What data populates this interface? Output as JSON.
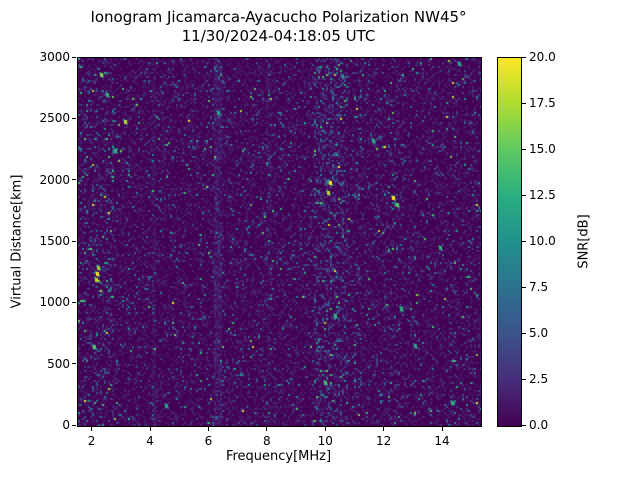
{
  "chart_data": {
    "type": "heatmap",
    "title": "Ionogram Jicamarca-Ayacucho Polarization NW45°",
    "subtitle": "11/30/2024-04:18:05 UTC",
    "xlabel": "Frequency[MHz]",
    "ylabel": "Virtual Distance[km]",
    "xlim": [
      1.5,
      15.3
    ],
    "ylim": [
      0,
      3000
    ],
    "xticks": [
      2,
      4,
      6,
      8,
      10,
      12,
      14
    ],
    "yticks": [
      0,
      500,
      1000,
      1500,
      2000,
      2500,
      3000
    ],
    "grid": false,
    "colorbar": {
      "label": "SNR[dB]",
      "min": 0,
      "max": 20,
      "ticks": [
        "0.0",
        "2.5",
        "5.0",
        "7.5",
        "10.0",
        "12.5",
        "15.0",
        "17.5",
        "20.0"
      ],
      "position": "right"
    },
    "colormap": "viridis",
    "colormap_stops": [
      "#440154",
      "#472d7b",
      "#3b528b",
      "#2c728e",
      "#21918c",
      "#28ae80",
      "#5ec962",
      "#addc30",
      "#fde725"
    ],
    "noise": {
      "description": "Dark viridis background (~0 dB SNR) with sparse speckle noise; denser speckle columns near 9.6-10.7 MHz, faint vertical interference lines near 4.1, 6.3, 8.0 and 11.1 MHz, brighter scattered echoes near 2-2.7 MHz and isolated strong echoes up to 20 dB",
      "seed": 20241130,
      "background_db": 0,
      "base_speckle_density": 0.1,
      "bands": [
        {
          "x0": 1.5,
          "x1": 2.75,
          "density_mult": 2.0,
          "bright_boost": 2.2
        },
        {
          "x0": 4.0,
          "x1": 4.18,
          "base_add": 0.9
        },
        {
          "x0": 6.18,
          "x1": 6.42,
          "base_add": 1.6,
          "density_mult": 1.3
        },
        {
          "x0": 7.95,
          "x1": 8.12,
          "base_add": 0.7
        },
        {
          "x0": 9.6,
          "x1": 10.75,
          "density_mult": 3.0,
          "bright_boost": 1.3
        },
        {
          "x0": 10.95,
          "x1": 11.2,
          "density_mult": 1.7
        },
        {
          "x0": 12.1,
          "x1": 12.55,
          "density_mult": 1.5
        },
        {
          "x0": 14.9,
          "x1": 15.3,
          "density_mult": 1.4
        }
      ],
      "bright_spots": [
        {
          "x": 2.05,
          "y": 640,
          "snr": 15
        },
        {
          "x": 2.1,
          "y": 1190,
          "snr": 18
        },
        {
          "x": 2.14,
          "y": 1240,
          "snr": 20
        },
        {
          "x": 2.18,
          "y": 1290,
          "snr": 17
        },
        {
          "x": 2.3,
          "y": 2860,
          "snr": 16
        },
        {
          "x": 2.5,
          "y": 2700,
          "snr": 13
        },
        {
          "x": 2.75,
          "y": 2240,
          "snr": 13
        },
        {
          "x": 3.1,
          "y": 2480,
          "snr": 18
        },
        {
          "x": 4.5,
          "y": 160,
          "snr": 12
        },
        {
          "x": 6.3,
          "y": 2550,
          "snr": 12
        },
        {
          "x": 9.95,
          "y": 350,
          "snr": 14
        },
        {
          "x": 10.05,
          "y": 1900,
          "snr": 18
        },
        {
          "x": 10.12,
          "y": 1980,
          "snr": 20
        },
        {
          "x": 10.3,
          "y": 900,
          "snr": 13
        },
        {
          "x": 11.6,
          "y": 2320,
          "snr": 12
        },
        {
          "x": 12.3,
          "y": 1855,
          "snr": 20
        },
        {
          "x": 12.42,
          "y": 1800,
          "snr": 15
        },
        {
          "x": 12.55,
          "y": 955,
          "snr": 13
        },
        {
          "x": 13.05,
          "y": 650,
          "snr": 12
        },
        {
          "x": 13.9,
          "y": 1450,
          "snr": 13
        },
        {
          "x": 14.3,
          "y": 185,
          "snr": 13
        },
        {
          "x": 14.55,
          "y": 2950,
          "snr": 12
        }
      ]
    }
  }
}
